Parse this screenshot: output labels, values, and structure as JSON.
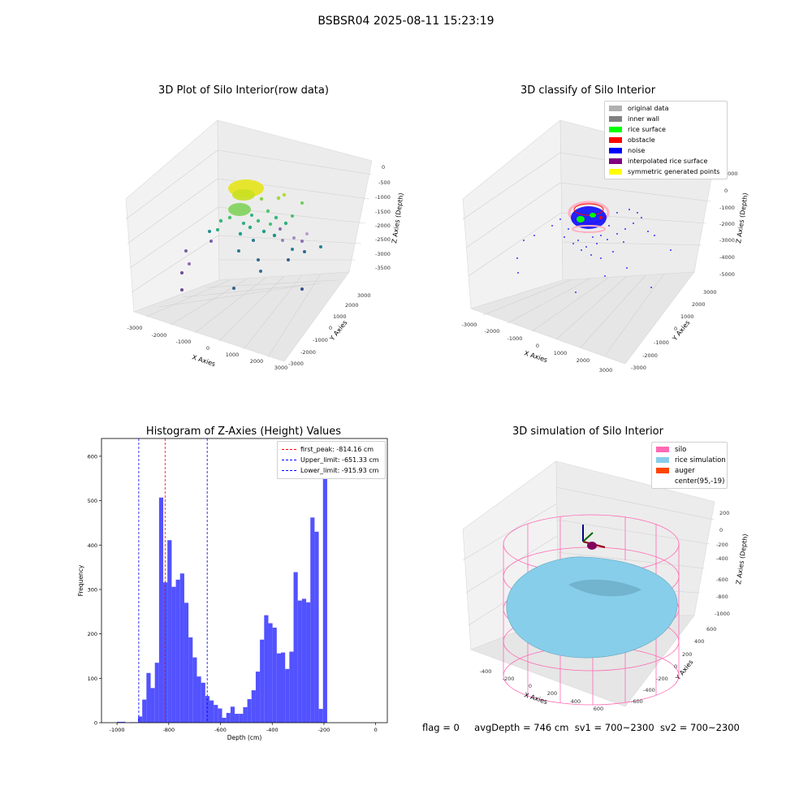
{
  "suptitle": "BSBSR04 2025-08-11 15:23:19",
  "panel1": {
    "title": "3D Plot of Silo Interior(row data)",
    "xlabel": "X Axies",
    "ylabel": "Y Axies",
    "zlabel": "Z Axies (Depth)",
    "xticks": [
      "-3000",
      "-2000",
      "-1000",
      "0",
      "1000",
      "2000",
      "3000"
    ],
    "yticks": [
      "-3000",
      "-2000",
      "-1000",
      "0",
      "1000",
      "2000",
      "3000"
    ],
    "zticks": [
      "0",
      "-500",
      "-1000",
      "-1500",
      "-2000",
      "-2500",
      "-3000",
      "-3500"
    ]
  },
  "panel2": {
    "title": "3D classify of Silo Interior",
    "xlabel": "X Axies",
    "ylabel": "Y Axies",
    "zlabel": "Z Axies (Depth)",
    "xticks": [
      "-3000",
      "-2000",
      "-1000",
      "0",
      "1000",
      "2000",
      "3000"
    ],
    "yticks": [
      "-3000",
      "-2000",
      "-1000",
      "0",
      "1000",
      "2000",
      "3000"
    ],
    "zticks": [
      "1000",
      "0",
      "-1000",
      "-2000",
      "-3000",
      "-4000",
      "-5000"
    ],
    "legend": [
      {
        "label": "original data",
        "color": "#b0b0b0"
      },
      {
        "label": "inner wall",
        "color": "#808080"
      },
      {
        "label": "rice surface",
        "color": "#00ff00"
      },
      {
        "label": "obstacle",
        "color": "#ff0000"
      },
      {
        "label": "noise",
        "color": "#0000ff"
      },
      {
        "label": "interpolated rice surface",
        "color": "#800080"
      },
      {
        "label": "symmetric generated points",
        "color": "#ffff00"
      }
    ]
  },
  "panel4": {
    "title": "3D simulation of Silo Interior",
    "xlabel": "X Axies",
    "ylabel": "Y Axies",
    "zlabel": "Z Axies (Depth)",
    "xticks": [
      "-400",
      "-200",
      "0",
      "200",
      "400",
      "600"
    ],
    "yticks": [
      "-600",
      "-400",
      "-200",
      "0",
      "200",
      "400",
      "600"
    ],
    "zticks": [
      "200",
      "0",
      "-200",
      "-400",
      "-600",
      "-800",
      "-1000"
    ],
    "legend": [
      {
        "label": "silo",
        "color": "#ff69b4"
      },
      {
        "label": "rice simulation",
        "color": "#87ceeb"
      },
      {
        "label": "auger",
        "color": "#ff4500"
      },
      {
        "label": "center(95,-19)",
        "color": "#ffffff"
      }
    ]
  },
  "chart_data": {
    "type": "bar",
    "title": "Histogram of Z-Axies (Height) Values",
    "xlabel": "Depth (cm)",
    "ylabel": "Frequency",
    "xlim": [
      -1060,
      45
    ],
    "ylim": [
      0,
      640
    ],
    "xticks": [
      -1000,
      -800,
      -600,
      -400,
      -200,
      0
    ],
    "yticks": [
      0,
      100,
      200,
      300,
      400,
      500,
      600
    ],
    "bin_start": -1000,
    "bin_width": 16.25,
    "values": [
      2,
      2,
      0,
      1,
      1,
      14,
      52,
      112,
      78,
      135,
      507,
      316,
      411,
      306,
      322,
      336,
      270,
      192,
      147,
      104,
      90,
      60,
      50,
      40,
      32,
      11,
      22,
      36,
      20,
      20,
      35,
      53,
      73,
      115,
      187,
      242,
      224,
      214,
      156,
      158,
      121,
      160,
      339,
      275,
      279,
      271,
      462,
      430,
      31,
      610
    ],
    "first_peak": -814.16,
    "upper_limit": -651.33,
    "lower_limit": -915.93,
    "legend": [
      {
        "label": "first_peak: -814.16 cm",
        "color": "#ff0000"
      },
      {
        "label": "Upper_limit: -651.33 cm",
        "color": "#0000ff"
      },
      {
        "label": "Lower_limit: -915.93 cm",
        "color": "#0000ff"
      }
    ],
    "bar_color": "#4f4fff"
  },
  "footer": {
    "flag": "flag = 0",
    "avg_depth": "avgDepth = 746 cm",
    "sv1": "sv1 = 700~2300",
    "sv2": "sv2 = 700~2300"
  }
}
